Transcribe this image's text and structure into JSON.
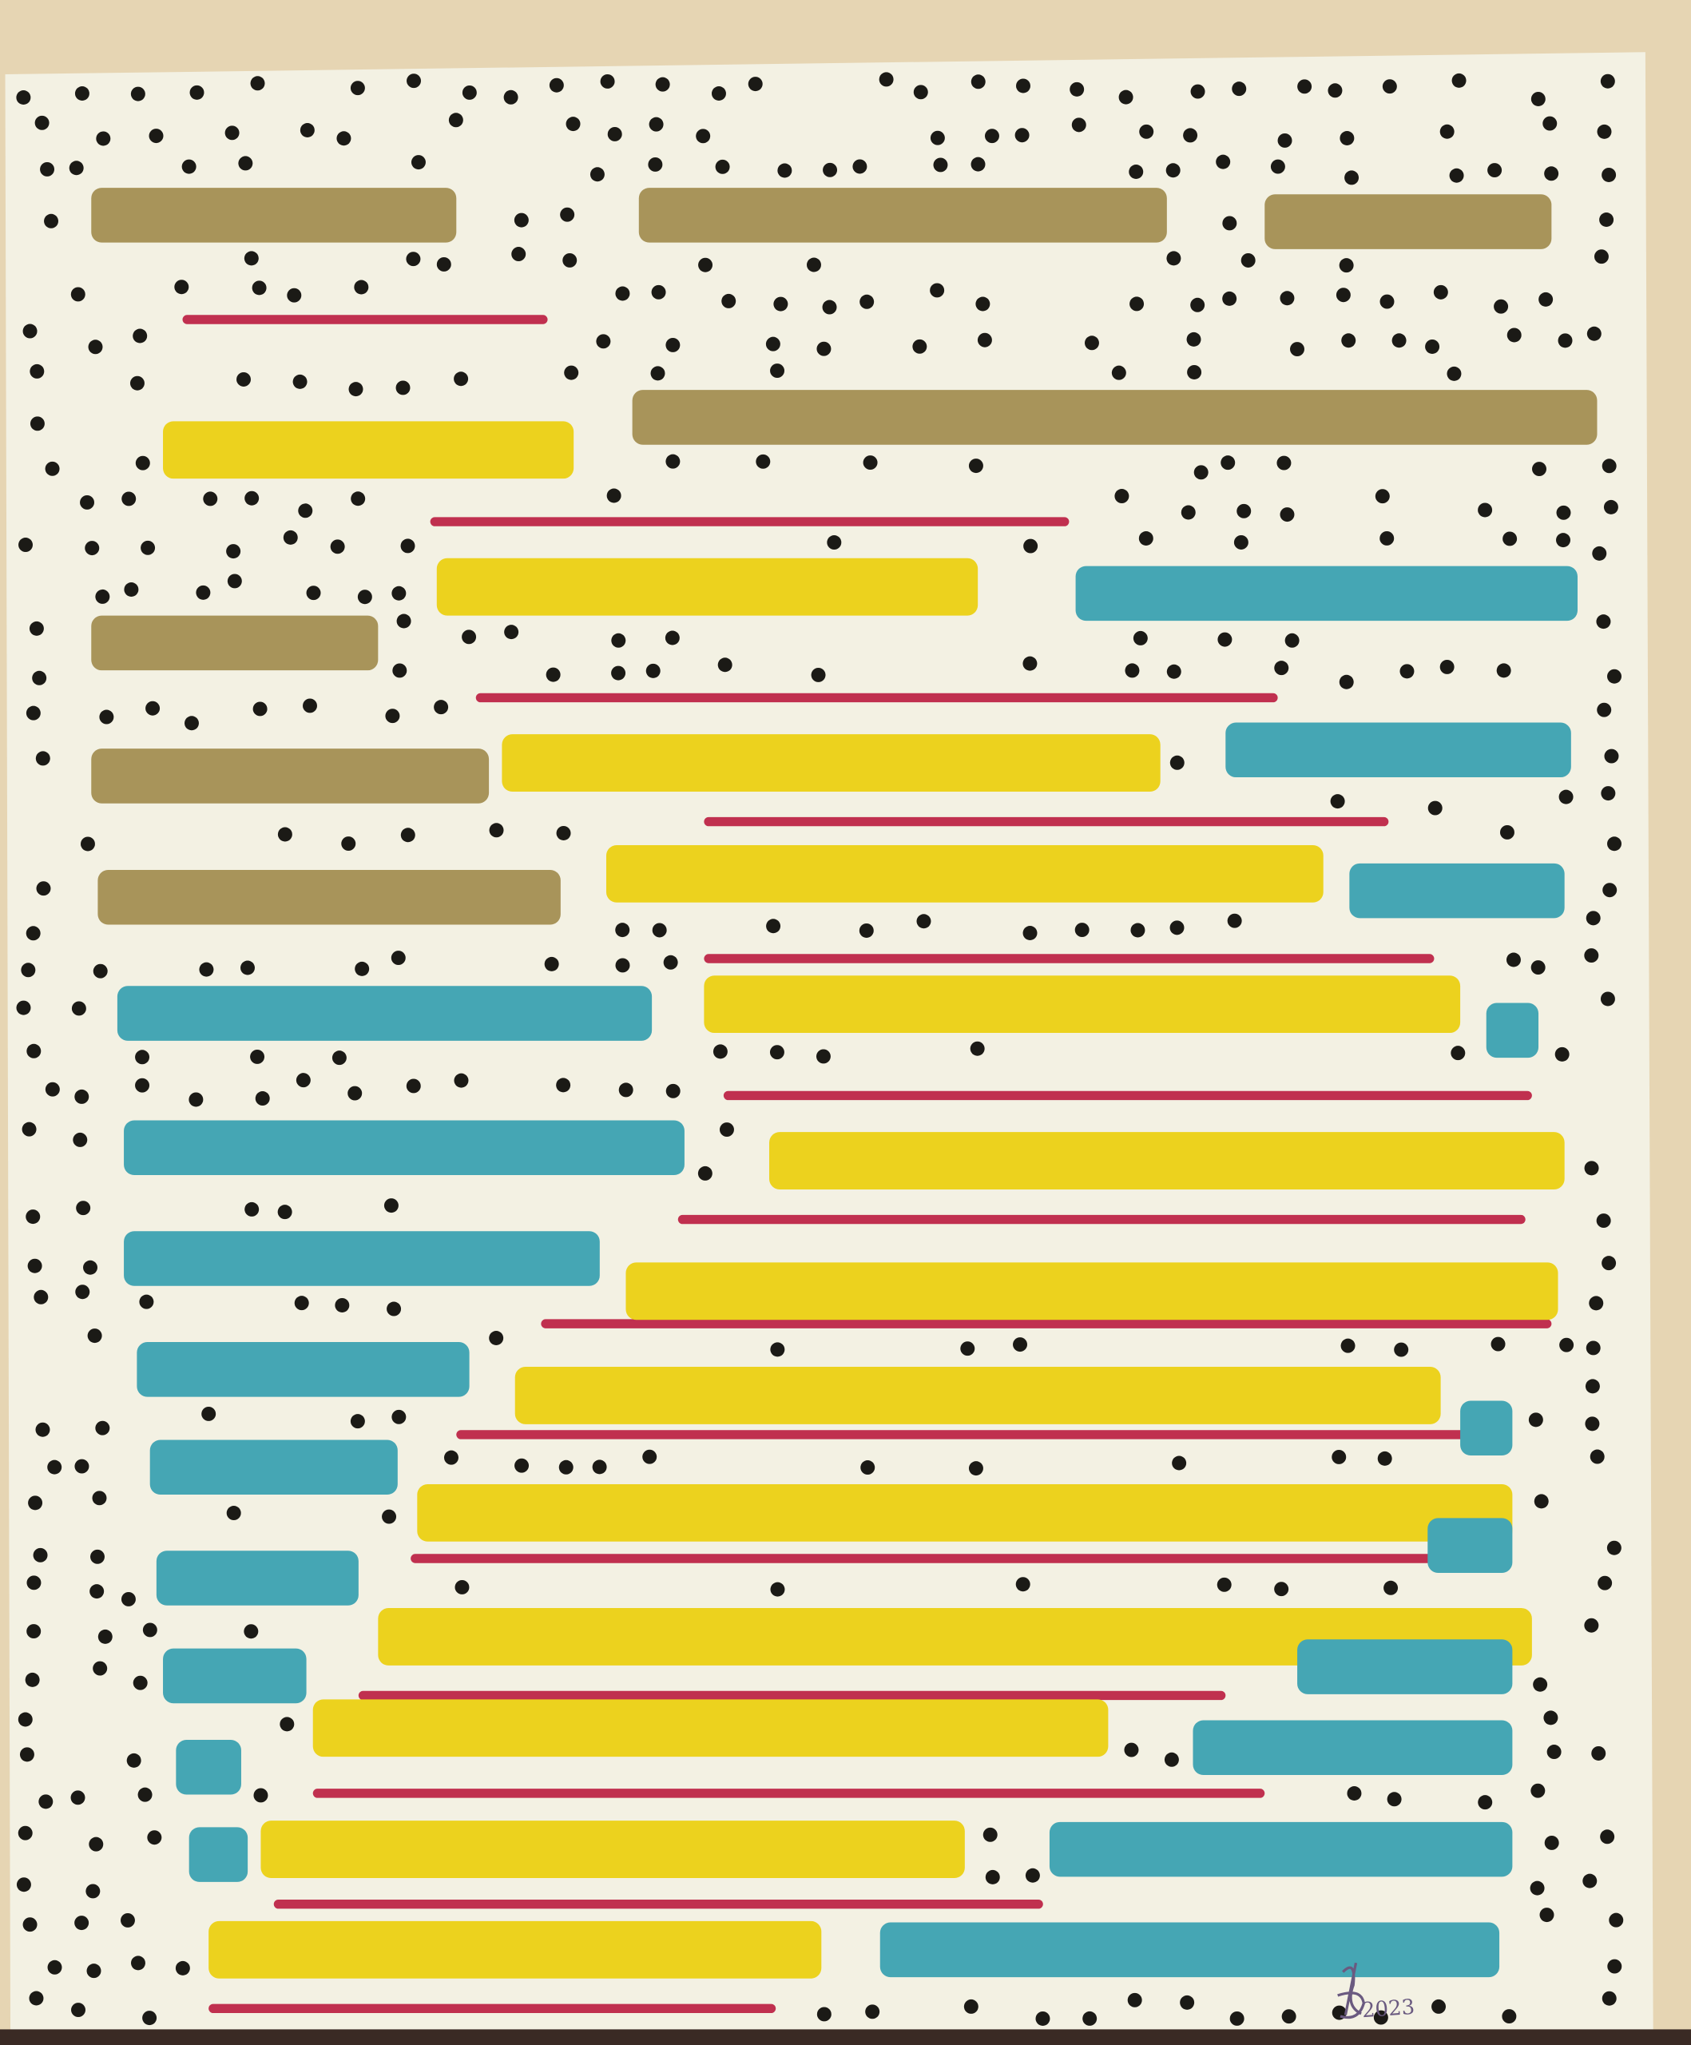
{
  "artwork": {
    "signature": {
      "monogram": "SB",
      "year": "2023"
    },
    "colors": {
      "wall": "#e6d5b3",
      "canvas": "#f3f1e3",
      "gold": "#a8945a",
      "red": "#c0304f",
      "yellow": "#ecd21e",
      "teal": "#45a6b4",
      "dots": "#1b1a16",
      "signature_ink": "#6a5a80"
    }
  }
}
